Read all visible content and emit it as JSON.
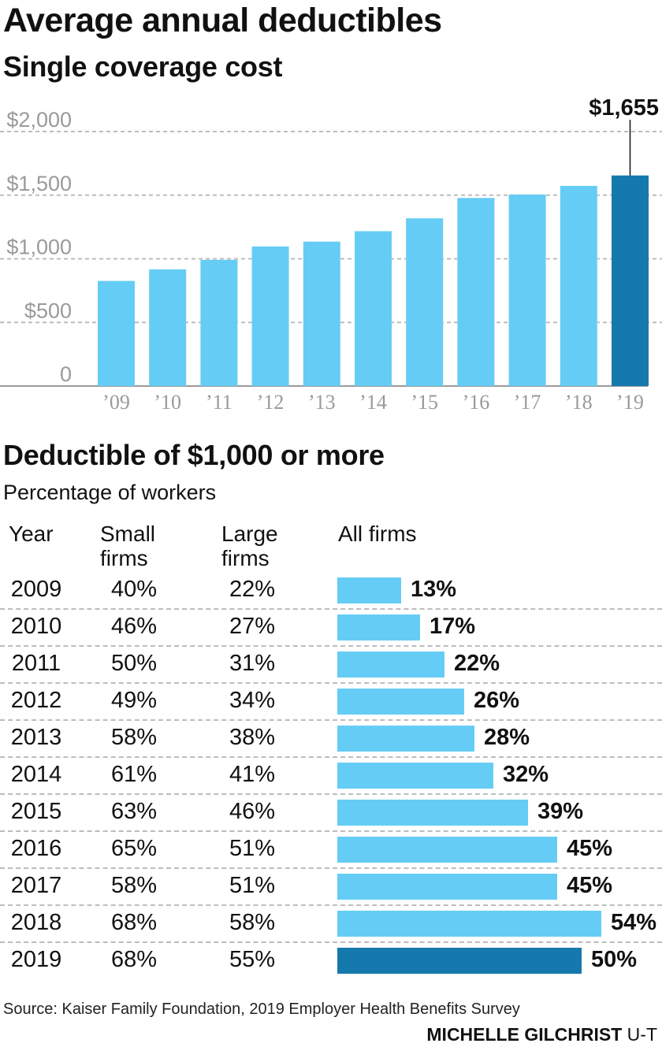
{
  "title": "Average annual deductibles",
  "bar_chart_subtitle": "Single coverage cost",
  "chart_data": [
    {
      "type": "bar",
      "title": "Single coverage cost",
      "categories": [
        "’09",
        "’10",
        "’11",
        "’12",
        "’13",
        "’14",
        "’15",
        "’16",
        "’17",
        "’18",
        "’19"
      ],
      "values": [
        826,
        917,
        992,
        1097,
        1135,
        1217,
        1318,
        1478,
        1505,
        1573,
        1655
      ],
      "highlight_index": 10,
      "callout": {
        "index": 10,
        "label": "$1,655"
      },
      "y_ticks": [
        {
          "value": 0,
          "label": "0"
        },
        {
          "value": 500,
          "label": "$500"
        },
        {
          "value": 1000,
          "label": "$1,000"
        },
        {
          "value": 1500,
          "label": "$1,500"
        },
        {
          "value": 2000,
          "label": "$2,000"
        }
      ],
      "ylim": [
        0,
        2000
      ],
      "grid": true,
      "colors": {
        "bar": "#65cdf5",
        "highlight": "#1679ad",
        "grid": "#bdbdbd",
        "axis_text": "#9a9a9a"
      }
    },
    {
      "type": "table",
      "title": "Deductible of $1,000 or more",
      "subtitle": "Percentage of workers",
      "columns": [
        "Year",
        "Small firms",
        "Large firms",
        "All firms"
      ],
      "rows": [
        {
          "year": "2009",
          "small": "40%",
          "large": "22%",
          "all": 13,
          "all_label": "13%"
        },
        {
          "year": "2010",
          "small": "46%",
          "large": "27%",
          "all": 17,
          "all_label": "17%"
        },
        {
          "year": "2011",
          "small": "50%",
          "large": "31%",
          "all": 22,
          "all_label": "22%"
        },
        {
          "year": "2012",
          "small": "49%",
          "large": "34%",
          "all": 26,
          "all_label": "26%"
        },
        {
          "year": "2013",
          "small": "58%",
          "large": "38%",
          "all": 28,
          "all_label": "28%"
        },
        {
          "year": "2014",
          "small": "61%",
          "large": "41%",
          "all": 32,
          "all_label": "32%"
        },
        {
          "year": "2015",
          "small": "63%",
          "large": "46%",
          "all": 39,
          "all_label": "39%"
        },
        {
          "year": "2016",
          "small": "65%",
          "large": "51%",
          "all": 45,
          "all_label": "45%"
        },
        {
          "year": "2017",
          "small": "58%",
          "large": "51%",
          "all": 45,
          "all_label": "45%"
        },
        {
          "year": "2018",
          "small": "68%",
          "large": "58%",
          "all": 54,
          "all_label": "54%"
        },
        {
          "year": "2019",
          "small": "68%",
          "large": "55%",
          "all": 50,
          "all_label": "50%"
        }
      ],
      "highlight_index": 10,
      "colors": {
        "bar": "#65cdf5",
        "highlight": "#1679ad"
      }
    }
  ],
  "table_header": {
    "year": "Year",
    "small_line1": "Small",
    "small_line2": "firms",
    "large_line1": "Large",
    "large_line2": "firms",
    "all": "All firms"
  },
  "footer": {
    "source": "Source: Kaiser Family Foundation, 2019 Employer Health Benefits Survey",
    "credit_name": "MICHELLE GILCHRIST",
    "credit_org": "U-T"
  }
}
